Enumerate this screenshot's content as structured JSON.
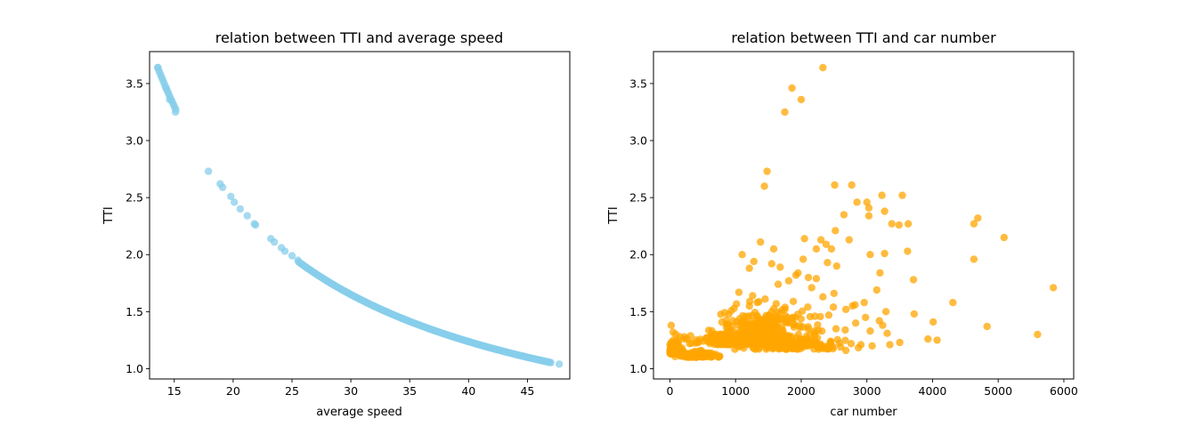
{
  "chart_data": [
    {
      "type": "scatter",
      "title": "relation between TTI and average speed",
      "xlabel": "average speed",
      "ylabel": "TTI",
      "xlim": [
        12.9,
        48.6
      ],
      "ylim": [
        0.91,
        3.78
      ],
      "xticks": [
        15,
        20,
        25,
        30,
        35,
        40,
        45
      ],
      "yticks": [
        1.0,
        1.5,
        2.0,
        2.5,
        3.0,
        3.5
      ],
      "color": "#87ceeb",
      "grid": false,
      "curve_model": {
        "k": 49.5,
        "x_from": 13.6,
        "x_to": 47.0
      },
      "points": [
        [
          13.6,
          3.64
        ],
        [
          14.3,
          3.46
        ],
        [
          14.6,
          3.36
        ],
        [
          15.1,
          3.25
        ],
        [
          17.9,
          2.73
        ],
        [
          18.9,
          2.62
        ],
        [
          19.1,
          2.59
        ],
        [
          19.8,
          2.51
        ],
        [
          20.1,
          2.46
        ],
        [
          20.6,
          2.4
        ],
        [
          21.2,
          2.34
        ],
        [
          21.8,
          2.27
        ],
        [
          21.9,
          2.26
        ],
        [
          23.2,
          2.14
        ],
        [
          23.5,
          2.11
        ],
        [
          24.1,
          2.06
        ],
        [
          24.4,
          2.03
        ],
        [
          25.0,
          1.99
        ],
        [
          25.5,
          1.95
        ],
        [
          47.7,
          1.04
        ]
      ]
    },
    {
      "type": "scatter",
      "title": "relation between TTI and car number",
      "xlabel": "car number",
      "ylabel": "TTI",
      "xlim": [
        -250,
        6150
      ],
      "ylim": [
        0.91,
        3.78
      ],
      "xticks": [
        0,
        1000,
        2000,
        3000,
        4000,
        5000,
        6000
      ],
      "yticks": [
        1.0,
        1.5,
        2.0,
        2.5,
        3.0,
        3.5
      ],
      "color": "#ffa500",
      "grid": false,
      "points": [
        [
          2330,
          3.64
        ],
        [
          1860,
          3.46
        ],
        [
          2000,
          3.36
        ],
        [
          1750,
          3.25
        ],
        [
          1480,
          2.73
        ],
        [
          1440,
          2.6
        ],
        [
          2510,
          2.61
        ],
        [
          2770,
          2.61
        ],
        [
          3230,
          2.52
        ],
        [
          3540,
          2.52
        ],
        [
          2850,
          2.46
        ],
        [
          3000,
          2.46
        ],
        [
          3030,
          2.41
        ],
        [
          3270,
          2.38
        ],
        [
          2650,
          2.35
        ],
        [
          3030,
          2.34
        ],
        [
          4690,
          2.32
        ],
        [
          3380,
          2.27
        ],
        [
          3630,
          2.27
        ],
        [
          4630,
          2.27
        ],
        [
          3490,
          2.26
        ],
        [
          2520,
          2.21
        ],
        [
          5090,
          2.15
        ],
        [
          2050,
          2.14
        ],
        [
          2300,
          2.13
        ],
        [
          2730,
          2.13
        ],
        [
          1380,
          2.11
        ],
        [
          1580,
          2.05
        ],
        [
          2380,
          2.09
        ],
        [
          2460,
          2.05
        ],
        [
          2230,
          2.05
        ],
        [
          3620,
          2.03
        ],
        [
          3270,
          2.01
        ],
        [
          1100,
          2.0
        ],
        [
          1280,
          1.94
        ],
        [
          1550,
          1.92
        ],
        [
          1210,
          1.88
        ],
        [
          1680,
          1.89
        ],
        [
          2400,
          1.93
        ],
        [
          2030,
          1.96
        ],
        [
          2540,
          1.9
        ],
        [
          3050,
          2.0
        ],
        [
          4630,
          1.96
        ],
        [
          1950,
          1.84
        ],
        [
          1920,
          1.82
        ],
        [
          2110,
          1.8
        ],
        [
          2230,
          1.79
        ],
        [
          1810,
          1.77
        ],
        [
          1650,
          1.74
        ],
        [
          3200,
          1.84
        ],
        [
          3710,
          1.78
        ],
        [
          5840,
          1.71
        ],
        [
          1050,
          1.67
        ],
        [
          1260,
          1.64
        ],
        [
          2160,
          1.71
        ],
        [
          2500,
          1.66
        ],
        [
          3150,
          1.69
        ],
        [
          1450,
          1.61
        ],
        [
          1330,
          1.58
        ],
        [
          1620,
          1.57
        ],
        [
          1880,
          1.59
        ],
        [
          2330,
          1.63
        ],
        [
          2820,
          1.56
        ],
        [
          2960,
          1.58
        ],
        [
          4310,
          1.58
        ],
        [
          2490,
          1.54
        ],
        [
          2780,
          1.55
        ],
        [
          2680,
          1.52
        ],
        [
          1550,
          1.5
        ],
        [
          1750,
          1.52
        ],
        [
          2100,
          1.54
        ],
        [
          3290,
          1.5
        ],
        [
          3720,
          1.48
        ],
        [
          2210,
          1.46
        ],
        [
          2420,
          1.47
        ],
        [
          1870,
          1.45
        ],
        [
          3190,
          1.42
        ],
        [
          4010,
          1.41
        ],
        [
          2830,
          1.4
        ],
        [
          2980,
          1.45
        ],
        [
          3240,
          1.38
        ],
        [
          4830,
          1.37
        ],
        [
          2530,
          1.35
        ],
        [
          2670,
          1.34
        ],
        [
          3050,
          1.33
        ],
        [
          3310,
          1.31
        ],
        [
          5600,
          1.3
        ],
        [
          2200,
          1.33
        ],
        [
          3930,
          1.26
        ],
        [
          4070,
          1.25
        ],
        [
          3500,
          1.23
        ],
        [
          3350,
          1.21
        ],
        [
          3080,
          1.2
        ],
        [
          2760,
          1.22
        ],
        [
          2680,
          1.16
        ],
        [
          1450,
          1.44
        ],
        [
          1320,
          1.43
        ],
        [
          960,
          1.42
        ],
        [
          870,
          1.39
        ],
        [
          900,
          1.35
        ],
        [
          1100,
          1.4
        ],
        [
          1200,
          1.46
        ],
        [
          760,
          1.3
        ],
        [
          680,
          1.28
        ],
        [
          600,
          1.24
        ],
        [
          20,
          1.38
        ],
        [
          50,
          1.32
        ],
        [
          90,
          1.3
        ],
        [
          150,
          1.28
        ],
        [
          230,
          1.26
        ],
        [
          300,
          1.22
        ],
        [
          380,
          1.15
        ],
        [
          520,
          1.14
        ],
        [
          640,
          1.12
        ],
        [
          760,
          1.11
        ],
        [
          2910,
          1.21
        ],
        [
          2140,
          1.3
        ],
        [
          1980,
          1.36
        ],
        [
          1780,
          1.41
        ],
        [
          1680,
          1.48
        ],
        [
          1540,
          1.36
        ],
        [
          1410,
          1.32
        ],
        [
          2450,
          1.24
        ],
        [
          2600,
          1.19
        ]
      ],
      "clusters": [
        {
          "cx": 70,
          "cy": 1.13,
          "sx": 50,
          "sy": 0.05,
          "n": 200
        },
        {
          "cx": 420,
          "cy": 1.1,
          "sx": 140,
          "sy": 0.025,
          "n": 120
        },
        {
          "cx": 1250,
          "cy": 1.21,
          "sx": 380,
          "sy": 0.09,
          "n": 380
        },
        {
          "cx": 1900,
          "cy": 1.17,
          "sx": 380,
          "sy": 0.06,
          "n": 140
        },
        {
          "cx": 1500,
          "cy": 1.36,
          "sx": 330,
          "sy": 0.12,
          "n": 90
        }
      ]
    }
  ]
}
